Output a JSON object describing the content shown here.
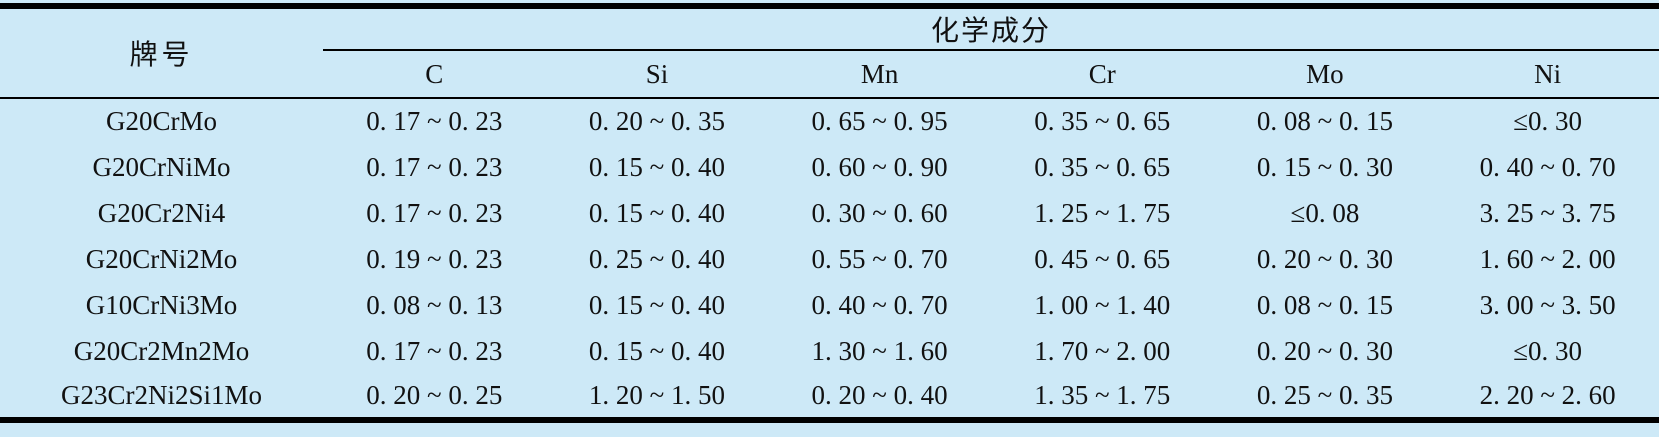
{
  "page": {
    "background_color": "#cde9f7",
    "text_color": "#111111",
    "rule_color": "#000000"
  },
  "table": {
    "grade_column_header": "牌号",
    "group_header": "化学成分",
    "element_columns": [
      "C",
      "Si",
      "Mn",
      "Cr",
      "Mo",
      "Ni"
    ],
    "rows": [
      {
        "grade": "G20CrMo",
        "values": [
          "0. 17 ~ 0. 23",
          "0. 20 ~ 0. 35",
          "0. 65 ~ 0. 95",
          "0. 35 ~ 0. 65",
          "0. 08 ~ 0. 15",
          "≤0. 30"
        ]
      },
      {
        "grade": "G20CrNiMo",
        "values": [
          "0. 17 ~ 0. 23",
          "0. 15 ~ 0. 40",
          "0. 60 ~ 0. 90",
          "0. 35 ~ 0. 65",
          "0. 15 ~ 0. 30",
          "0. 40 ~ 0. 70"
        ]
      },
      {
        "grade": "G20Cr2Ni4",
        "values": [
          "0. 17 ~ 0. 23",
          "0. 15 ~ 0. 40",
          "0. 30 ~ 0. 60",
          "1. 25 ~ 1. 75",
          "≤0. 08",
          "3. 25 ~ 3. 75"
        ]
      },
      {
        "grade": "G20CrNi2Mo",
        "values": [
          "0. 19 ~ 0. 23",
          "0. 25 ~ 0. 40",
          "0. 55 ~ 0. 70",
          "0. 45 ~ 0. 65",
          "0. 20 ~ 0. 30",
          "1. 60 ~ 2. 00"
        ]
      },
      {
        "grade": "G10CrNi3Mo",
        "values": [
          "0. 08 ~ 0. 13",
          "0. 15 ~ 0. 40",
          "0. 40 ~ 0. 70",
          "1. 00 ~ 1. 40",
          "0. 08 ~ 0. 15",
          "3. 00 ~ 3. 50"
        ]
      },
      {
        "grade": "G20Cr2Mn2Mo",
        "values": [
          "0. 17 ~ 0. 23",
          "0. 15 ~ 0. 40",
          "1. 30 ~ 1. 60",
          "1. 70 ~ 2. 00",
          "0. 20 ~ 0. 30",
          "≤0. 30"
        ]
      },
      {
        "grade": "G23Cr2Ni2Si1Mo",
        "values": [
          "0. 20 ~ 0. 25",
          "1. 20 ~ 1. 50",
          "0. 20 ~ 0. 40",
          "1. 35 ~ 1. 75",
          "0. 25 ~ 0. 35",
          "2. 20 ~ 2. 60"
        ]
      }
    ]
  }
}
